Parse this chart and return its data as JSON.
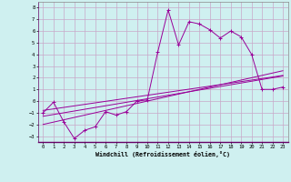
{
  "title": "",
  "xlabel": "Windchill (Refroidissement éolien,°C)",
  "ylabel": "",
  "bg_color": "#cff0f0",
  "grid_color": "#c8a8c8",
  "line_color": "#990099",
  "xlim": [
    -0.5,
    23.5
  ],
  "ylim": [
    -3.5,
    8.5
  ],
  "xticks": [
    0,
    1,
    2,
    3,
    4,
    5,
    6,
    7,
    8,
    9,
    10,
    11,
    12,
    13,
    14,
    15,
    16,
    17,
    18,
    19,
    20,
    21,
    22,
    23
  ],
  "yticks": [
    -3,
    -2,
    -1,
    0,
    1,
    2,
    3,
    4,
    5,
    6,
    7,
    8
  ],
  "hours": [
    0,
    1,
    2,
    3,
    4,
    5,
    6,
    7,
    8,
    9,
    10,
    11,
    12,
    13,
    14,
    15,
    16,
    17,
    18,
    19,
    20,
    21,
    22,
    23
  ],
  "temp": [
    -1.0,
    -0.1,
    -1.8,
    -3.2,
    -2.5,
    -2.2,
    -0.9,
    -1.2,
    -0.9,
    0.0,
    0.1,
    4.2,
    7.8,
    4.8,
    6.8,
    6.6,
    6.1,
    5.4,
    6.0,
    5.5,
    4.0,
    1.0,
    1.0,
    1.2
  ],
  "line1": [
    -0.8,
    -0.67,
    -0.54,
    -0.41,
    -0.28,
    -0.15,
    -0.02,
    0.11,
    0.24,
    0.37,
    0.5,
    0.63,
    0.76,
    0.89,
    1.02,
    1.15,
    1.28,
    1.41,
    1.54,
    1.67,
    1.8,
    1.93,
    2.06,
    2.2
  ],
  "line2": [
    -1.3,
    -1.15,
    -1.0,
    -0.85,
    -0.7,
    -0.55,
    -0.4,
    -0.25,
    -0.1,
    0.05,
    0.2,
    0.35,
    0.5,
    0.65,
    0.8,
    0.95,
    1.1,
    1.25,
    1.4,
    1.55,
    1.7,
    1.85,
    2.0,
    2.15
  ],
  "line3": [
    -2.0,
    -1.8,
    -1.6,
    -1.4,
    -1.2,
    -1.0,
    -0.8,
    -0.6,
    -0.4,
    -0.2,
    0.0,
    0.2,
    0.4,
    0.6,
    0.8,
    1.0,
    1.2,
    1.4,
    1.6,
    1.8,
    2.0,
    2.2,
    2.4,
    2.6
  ]
}
